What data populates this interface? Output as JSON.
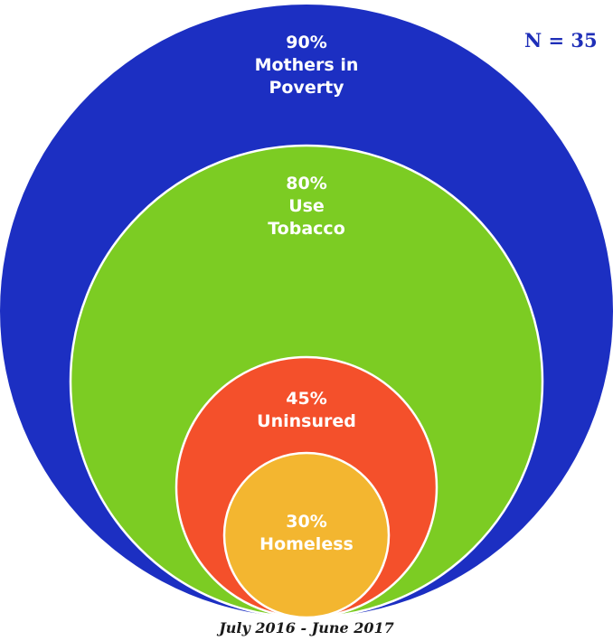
{
  "chart_data": {
    "type": "nested-circles",
    "sample_size": "N = 35",
    "period": "July 2016 - June 2017",
    "items": [
      {
        "percent": "90%",
        "value": 90,
        "label_lines": [
          "Mothers in",
          "Poverty"
        ],
        "color": "#1c2fc2"
      },
      {
        "percent": "80%",
        "value": 80,
        "label_lines": [
          "Use",
          "Tobacco"
        ],
        "color": "#7ccc23"
      },
      {
        "percent": "45%",
        "value": 45,
        "label_lines": [
          "Uninsured"
        ],
        "color": "#f4502b"
      },
      {
        "percent": "30%",
        "value": 30,
        "label_lines": [
          "Homeless"
        ],
        "color": "#f3b630"
      }
    ]
  }
}
